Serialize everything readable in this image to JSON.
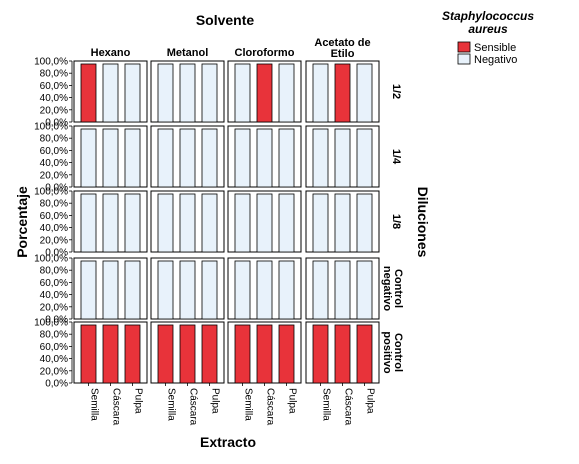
{
  "chart_data": {
    "type": "bar",
    "stacked": true,
    "title": "Solvente",
    "xlabel": "Extracto",
    "ylabel": "Porcentaje",
    "row_axis_label": "Diluciones",
    "columns": [
      "Hexano",
      "Metanol",
      "Cloroformo",
      "Acetato de Etilo"
    ],
    "rows": [
      "1/2",
      "1/4",
      "1/8",
      "Control negativo",
      "Control positivo"
    ],
    "categories": [
      "Semilla",
      "Cáscara",
      "Pulpa"
    ],
    "y_ticks": [
      "0,0%",
      "20,0%",
      "40,0%",
      "60,0%",
      "80,0%",
      "100,0%"
    ],
    "ylim": [
      0,
      100
    ],
    "legend": {
      "title": "Staphylococcus aureus",
      "position": "top-right",
      "entries": [
        {
          "name": "Sensible",
          "color": "#e8333a"
        },
        {
          "name": "Negativo",
          "color": "#e8f2fb"
        }
      ]
    },
    "panels": [
      {
        "row": "1/2",
        "col": "Hexano",
        "sensible": [
          100,
          0,
          0
        ]
      },
      {
        "row": "1/2",
        "col": "Metanol",
        "sensible": [
          0,
          0,
          0
        ]
      },
      {
        "row": "1/2",
        "col": "Cloroformo",
        "sensible": [
          0,
          100,
          0
        ]
      },
      {
        "row": "1/2",
        "col": "Acetato de Etilo",
        "sensible": [
          0,
          100,
          0
        ]
      },
      {
        "row": "1/4",
        "col": "Hexano",
        "sensible": [
          0,
          0,
          0
        ]
      },
      {
        "row": "1/4",
        "col": "Metanol",
        "sensible": [
          0,
          0,
          0
        ]
      },
      {
        "row": "1/4",
        "col": "Cloroformo",
        "sensible": [
          0,
          0,
          0
        ]
      },
      {
        "row": "1/4",
        "col": "Acetato de Etilo",
        "sensible": [
          0,
          0,
          0
        ]
      },
      {
        "row": "1/8",
        "col": "Hexano",
        "sensible": [
          0,
          0,
          0
        ]
      },
      {
        "row": "1/8",
        "col": "Metanol",
        "sensible": [
          0,
          0,
          0
        ]
      },
      {
        "row": "1/8",
        "col": "Cloroformo",
        "sensible": [
          0,
          0,
          0
        ]
      },
      {
        "row": "1/8",
        "col": "Acetato de Etilo",
        "sensible": [
          0,
          0,
          0
        ]
      },
      {
        "row": "Control negativo",
        "col": "Hexano",
        "sensible": [
          0,
          0,
          0
        ]
      },
      {
        "row": "Control negativo",
        "col": "Metanol",
        "sensible": [
          0,
          0,
          0
        ]
      },
      {
        "row": "Control negativo",
        "col": "Cloroformo",
        "sensible": [
          0,
          0,
          0
        ]
      },
      {
        "row": "Control negativo",
        "col": "Acetato de Etilo",
        "sensible": [
          0,
          0,
          0
        ]
      },
      {
        "row": "Control positivo",
        "col": "Hexano",
        "sensible": [
          100,
          100,
          100
        ]
      },
      {
        "row": "Control positivo",
        "col": "Metanol",
        "sensible": [
          100,
          100,
          100
        ]
      },
      {
        "row": "Control positivo",
        "col": "Cloroformo",
        "sensible": [
          100,
          100,
          100
        ]
      },
      {
        "row": "Control positivo",
        "col": "Acetato de Etilo",
        "sensible": [
          100,
          100,
          100
        ]
      }
    ]
  }
}
